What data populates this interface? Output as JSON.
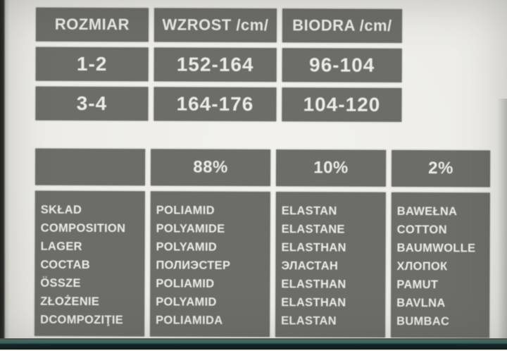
{
  "label": {
    "size_table": {
      "headers": [
        "ROZMIAR",
        "WZROST /cm/",
        "BIODRA /cm/"
      ],
      "rows": [
        [
          "1-2",
          "152-164",
          "96-104"
        ],
        [
          "3-4",
          "164-176",
          "104-120"
        ]
      ]
    },
    "composition_table": {
      "percent_headers": [
        "",
        "88%",
        "10%",
        "2%"
      ],
      "columns": [
        {
          "lines": [
            "SKŁAD",
            "COMPOSITION",
            "LAGER",
            "СОСТАВ",
            "ÖSSZE",
            "ZŁOŻENIE",
            "DCOMPOZIŢIE"
          ]
        },
        {
          "lines": [
            "POLIAMID",
            "POLYAMIDE",
            "POLYAMID",
            "ПОЛИЭСТЕР",
            "POLIAMID",
            "POLYAMID",
            "POLIAMIDA"
          ]
        },
        {
          "lines": [
            "ELASTAN",
            "ELASTANE",
            "ELASTHAN",
            "ЭЛАСТАН",
            "ELASTHAN",
            "ELASTHAN",
            "ELASTAN"
          ]
        },
        {
          "lines": [
            "BAWEŁNA",
            "COTTON",
            "BAUMWOLLE",
            "ХЛОПОК",
            "PAMUT",
            "BAVLNA",
            "BUMBAC"
          ]
        }
      ]
    },
    "colors": {
      "paper": "#f0efeb",
      "cell_background": "#6c6c68",
      "cell_text": "#edece8",
      "edge_black": "#1c1c1a",
      "accent_teal": "#44706a"
    }
  }
}
